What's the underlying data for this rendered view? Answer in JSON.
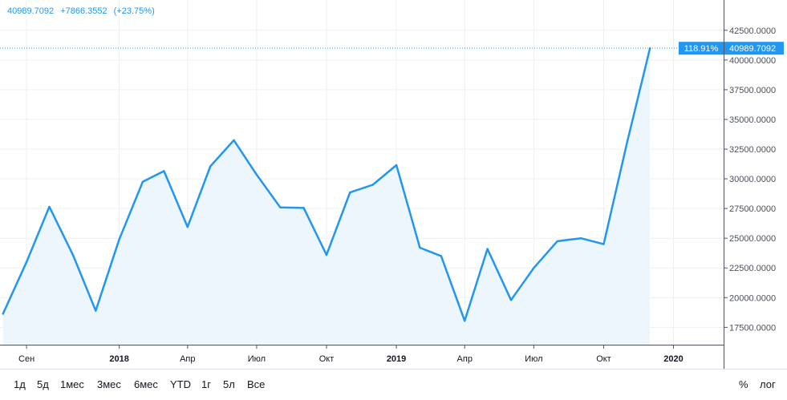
{
  "legend": {
    "last": "40989.7092",
    "change": "+7866.3552",
    "change_pct": "(+23.75%)"
  },
  "price_tag": {
    "percent": "118.91%",
    "value": "40989.7092"
  },
  "colors": {
    "line": "#2196f3",
    "area": "#eef6fd",
    "tag_bg": "#2196f3",
    "grid": "#eceff4",
    "text": "#131722",
    "axis_text": "#4a4f5a"
  },
  "toolbar": {
    "periods": [
      "1д",
      "5д",
      "1мес",
      "3мес",
      "6мес",
      "YTD",
      "1г",
      "5л",
      "Все"
    ],
    "percent_label": "%",
    "log_label": "лог"
  },
  "chart_data": {
    "type": "area",
    "x": [
      "2017-08-01",
      "2017-09-01",
      "2017-10-01",
      "2017-11-01",
      "2017-12-01",
      "2018-01-01",
      "2018-02-01",
      "2018-03-01",
      "2018-04-01",
      "2018-05-01",
      "2018-06-01",
      "2018-07-01",
      "2018-08-01",
      "2018-09-01",
      "2018-10-01",
      "2018-11-01",
      "2018-12-01",
      "2019-01-01",
      "2019-02-01",
      "2019-03-01",
      "2019-04-01",
      "2019-05-01",
      "2019-06-01",
      "2019-07-01",
      "2019-08-01",
      "2019-09-01",
      "2019-10-01",
      "2019-11-01",
      "2019-12-01"
    ],
    "values": [
      18650,
      23000,
      27650,
      23600,
      18900,
      24900,
      29750,
      30650,
      25950,
      31050,
      33250,
      30350,
      27600,
      27550,
      23600,
      28850,
      29500,
      31150,
      24200,
      23500,
      18050,
      24100,
      19800,
      22500,
      24750,
      25000,
      24500,
      33100,
      40989.7092
    ],
    "x_ticks": [
      {
        "date": "2017-09-01",
        "label": "Сен",
        "bold": false
      },
      {
        "date": "2018-01-01",
        "label": "2018",
        "bold": true
      },
      {
        "date": "2018-04-01",
        "label": "Апр",
        "bold": false
      },
      {
        "date": "2018-07-01",
        "label": "Июл",
        "bold": false
      },
      {
        "date": "2018-10-01",
        "label": "Окт",
        "bold": false
      },
      {
        "date": "2019-01-01",
        "label": "2019",
        "bold": true
      },
      {
        "date": "2019-04-01",
        "label": "Апр",
        "bold": false
      },
      {
        "date": "2019-07-01",
        "label": "Июл",
        "bold": false
      },
      {
        "date": "2019-10-01",
        "label": "Окт",
        "bold": false
      },
      {
        "date": "2020-01-01",
        "label": "2020",
        "bold": true
      }
    ],
    "y_ticks": [
      {
        "value": 17500,
        "label": "17500.0000"
      },
      {
        "value": 20000,
        "label": "20000.0000"
      },
      {
        "value": 22500,
        "label": "22500.0000"
      },
      {
        "value": 25000,
        "label": "25000.0000"
      },
      {
        "value": 27500,
        "label": "27500.0000"
      },
      {
        "value": 30000,
        "label": "30000.0000"
      },
      {
        "value": 32500,
        "label": "32500.0000"
      },
      {
        "value": 35000,
        "label": "35000.0000"
      },
      {
        "value": 37500,
        "label": "37500.0000"
      },
      {
        "value": 40000,
        "label": "40000.0000"
      },
      {
        "value": 42500,
        "label": "42500.0000"
      }
    ],
    "xlim": [
      "2017-07-28",
      "2020-03-07"
    ],
    "ylim": [
      16040,
      45050
    ],
    "grid": true,
    "last_value_line": 40989.7092
  }
}
